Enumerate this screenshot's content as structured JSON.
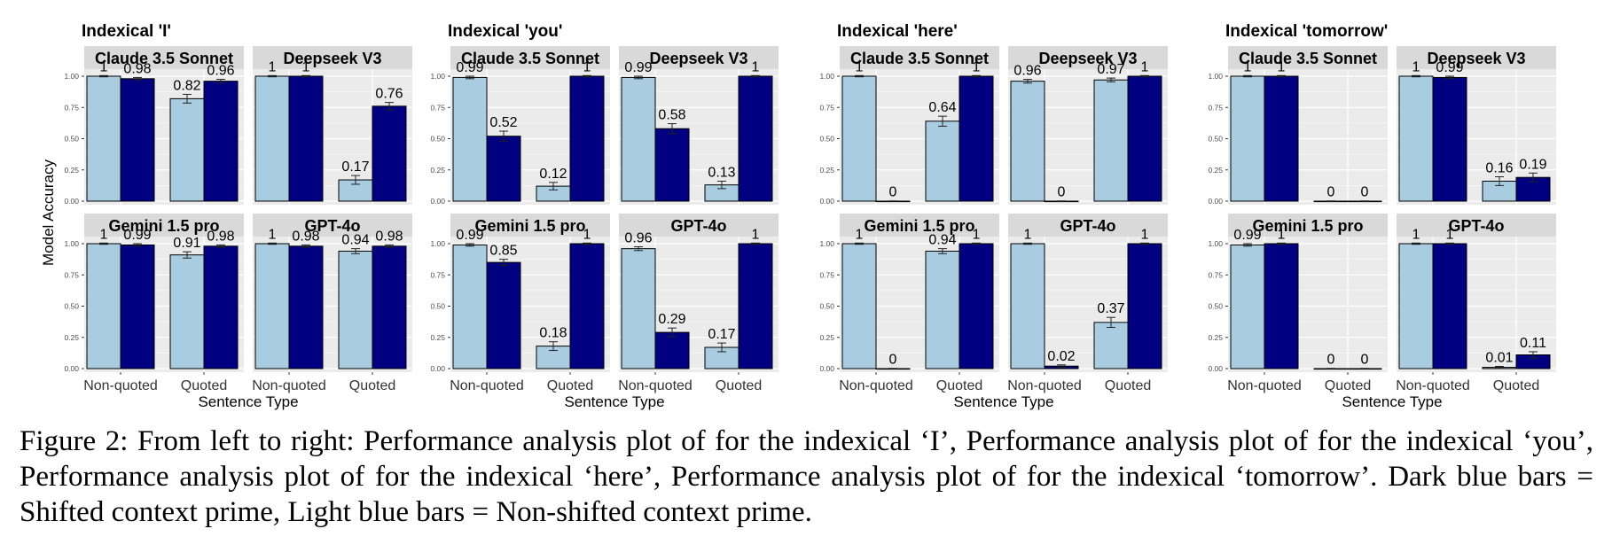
{
  "y_axis_label": "Model Accuracy",
  "x_axis_label": "Sentence Type",
  "caption": "Figure 2: From left to right: Performance analysis plot of for the indexical ‘I’, Performance analysis plot of for the indexical ‘you’, Performance analysis plot of for the indexical ‘here’, Performance analysis plot of for the indexical ‘tomorrow’. Dark blue bars = Shifted context prime, Light blue bars = Non-shifted context prime.",
  "colors": {
    "light_bar": "#a9cce0",
    "dark_bar": "#000080",
    "panel_bg": "#ebebeb",
    "strip_bg": "#d9d9d9",
    "grid": "#ffffff"
  },
  "chart_data": [
    {
      "type": "bar",
      "title": "Indexical 'I'",
      "categories": [
        "Non-quoted",
        "Quoted"
      ],
      "ylim": [
        0,
        1
      ],
      "yticks": [
        "0.00",
        "0.25",
        "0.50",
        "0.75",
        "1.00"
      ],
      "panels": [
        {
          "name": "Claude 3.5 Sonnet",
          "values": [
            [
              1,
              0.98
            ],
            [
              0.82,
              0.96
            ]
          ],
          "labels": [
            [
              "1",
              "0.98"
            ],
            [
              "0.82",
              "0.96"
            ]
          ],
          "errors": [
            [
              0.005,
              0.01
            ],
            [
              0.035,
              0.015
            ]
          ]
        },
        {
          "name": "Deepseek V3",
          "values": [
            [
              1,
              1
            ],
            [
              0.17,
              0.76
            ]
          ],
          "labels": [
            [
              "1",
              "1"
            ],
            [
              "0.17",
              "0.76"
            ]
          ],
          "errors": [
            [
              0.005,
              0.005
            ],
            [
              0.035,
              0.03
            ]
          ]
        },
        {
          "name": "Gemini 1.5 pro",
          "values": [
            [
              1,
              0.99
            ],
            [
              0.91,
              0.98
            ]
          ],
          "labels": [
            [
              "1",
              "0.99"
            ],
            [
              "0.91",
              "0.98"
            ]
          ],
          "errors": [
            [
              0.005,
              0.01
            ],
            [
              0.025,
              0.01
            ]
          ]
        },
        {
          "name": "GPT-4o",
          "values": [
            [
              1,
              0.98
            ],
            [
              0.94,
              0.98
            ]
          ],
          "labels": [
            [
              "1",
              "0.98"
            ],
            [
              "0.94",
              "0.98"
            ]
          ],
          "errors": [
            [
              0.005,
              0.01
            ],
            [
              0.02,
              0.01
            ]
          ]
        }
      ]
    },
    {
      "type": "bar",
      "title": "Indexical 'you'",
      "categories": [
        "Non-quoted",
        "Quoted"
      ],
      "ylim": [
        0,
        1
      ],
      "yticks": [
        "0.00",
        "0.25",
        "0.50",
        "0.75",
        "1.00"
      ],
      "panels": [
        {
          "name": "Claude 3.5 Sonnet",
          "values": [
            [
              0.99,
              0.52
            ],
            [
              0.12,
              1
            ]
          ],
          "labels": [
            [
              "0.99",
              "0.52"
            ],
            [
              "0.12",
              "1"
            ]
          ],
          "errors": [
            [
              0.01,
              0.04
            ],
            [
              0.03,
              0.005
            ]
          ]
        },
        {
          "name": "Deepseek V3",
          "values": [
            [
              0.99,
              0.58
            ],
            [
              0.13,
              1
            ]
          ],
          "labels": [
            [
              "0.99",
              "0.58"
            ],
            [
              "0.13",
              "1"
            ]
          ],
          "errors": [
            [
              0.01,
              0.04
            ],
            [
              0.03,
              0.005
            ]
          ]
        },
        {
          "name": "Gemini 1.5 pro",
          "values": [
            [
              0.99,
              0.85
            ],
            [
              0.18,
              1
            ]
          ],
          "labels": [
            [
              "0.99",
              "0.85"
            ],
            [
              "0.18",
              "1"
            ]
          ],
          "errors": [
            [
              0.01,
              0.025
            ],
            [
              0.035,
              0.005
            ]
          ]
        },
        {
          "name": "GPT-4o",
          "values": [
            [
              0.96,
              0.29
            ],
            [
              0.17,
              1
            ]
          ],
          "labels": [
            [
              "0.96",
              "0.29"
            ],
            [
              "0.17",
              "1"
            ]
          ],
          "errors": [
            [
              0.015,
              0.035
            ],
            [
              0.035,
              0.005
            ]
          ]
        }
      ]
    },
    {
      "type": "bar",
      "title": "Indexical 'here'",
      "categories": [
        "Non-quoted",
        "Quoted"
      ],
      "ylim": [
        0,
        1
      ],
      "yticks": [
        "0.00",
        "0.25",
        "0.50",
        "0.75",
        "1.00"
      ],
      "panels": [
        {
          "name": "Claude 3.5 Sonnet",
          "values": [
            [
              1,
              0
            ],
            [
              0.64,
              1
            ]
          ],
          "labels": [
            [
              "1",
              "0"
            ],
            [
              "0.64",
              "1"
            ]
          ],
          "errors": [
            [
              0.005,
              0.002
            ],
            [
              0.04,
              0.005
            ]
          ]
        },
        {
          "name": "Deepseek V3",
          "values": [
            [
              0.96,
              0
            ],
            [
              0.97,
              1
            ]
          ],
          "labels": [
            [
              "0.96",
              "0"
            ],
            [
              "0.97",
              "1"
            ]
          ],
          "errors": [
            [
              0.015,
              0.002
            ],
            [
              0.015,
              0.005
            ]
          ]
        },
        {
          "name": "Gemini 1.5 pro",
          "values": [
            [
              1,
              0
            ],
            [
              0.94,
              1
            ]
          ],
          "labels": [
            [
              "1",
              "0"
            ],
            [
              "0.94",
              "1"
            ]
          ],
          "errors": [
            [
              0.005,
              0.002
            ],
            [
              0.02,
              0.005
            ]
          ]
        },
        {
          "name": "GPT-4o",
          "values": [
            [
              1,
              0.02
            ],
            [
              0.37,
              1
            ]
          ],
          "labels": [
            [
              "1",
              "0.02"
            ],
            [
              "0.37",
              "1"
            ]
          ],
          "errors": [
            [
              0.005,
              0.01
            ],
            [
              0.04,
              0.005
            ]
          ]
        }
      ]
    },
    {
      "type": "bar",
      "title": "Indexical 'tomorrow'",
      "categories": [
        "Non-quoted",
        "Quoted"
      ],
      "ylim": [
        0,
        1
      ],
      "yticks": [
        "0.00",
        "0.25",
        "0.50",
        "0.75",
        "1.00"
      ],
      "panels": [
        {
          "name": "Claude 3.5 Sonnet",
          "values": [
            [
              1,
              1
            ],
            [
              0,
              0
            ]
          ],
          "labels": [
            [
              "1",
              "1"
            ],
            [
              "0",
              "0"
            ]
          ],
          "errors": [
            [
              0.005,
              0.005
            ],
            [
              0.002,
              0.002
            ]
          ]
        },
        {
          "name": "Deepseek V3",
          "values": [
            [
              1,
              0.99
            ],
            [
              0.16,
              0.19
            ]
          ],
          "labels": [
            [
              "1",
              "0.99"
            ],
            [
              "0.16",
              "0.19"
            ]
          ],
          "errors": [
            [
              0.005,
              0.01
            ],
            [
              0.035,
              0.035
            ]
          ]
        },
        {
          "name": "Gemini 1.5 pro",
          "values": [
            [
              0.99,
              1
            ],
            [
              0,
              0
            ]
          ],
          "labels": [
            [
              "0.99",
              "1"
            ],
            [
              "0",
              "0"
            ]
          ],
          "errors": [
            [
              0.01,
              0.005
            ],
            [
              0.002,
              0.002
            ]
          ]
        },
        {
          "name": "GPT-4o",
          "values": [
            [
              1,
              1
            ],
            [
              0.01,
              0.11
            ]
          ],
          "labels": [
            [
              "1",
              "1"
            ],
            [
              "0.01",
              "0.11"
            ]
          ],
          "errors": [
            [
              0.005,
              0.005
            ],
            [
              0.008,
              0.025
            ]
          ]
        }
      ]
    }
  ]
}
